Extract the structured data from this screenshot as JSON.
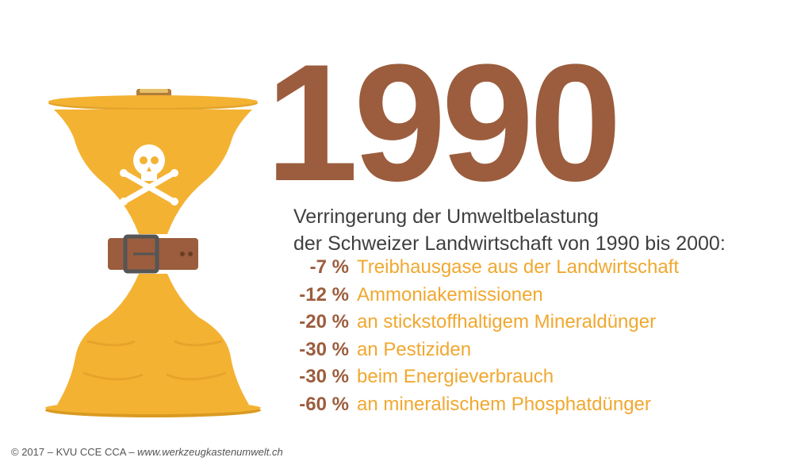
{
  "year": "1990",
  "intro": {
    "line1": "Verringerung der Umweltbelastung",
    "line2": "der Schweizer Landwirtschaft von 1990 bis 2000:"
  },
  "reductions": [
    {
      "percent": "-7 %",
      "label": "Treibhausgase aus der Landwirtschaft"
    },
    {
      "percent": "-12 %",
      "label": "Ammoniakemissionen"
    },
    {
      "percent": "-20 %",
      "label": "an stickstoffhaltigem Mineraldünger"
    },
    {
      "percent": "-30 %",
      "label": "an Pestiziden"
    },
    {
      "percent": "-30 %",
      "label": "beim Energieverbrauch"
    },
    {
      "percent": "-60 %",
      "label": "an mineralischem Phosphatdünger"
    }
  ],
  "footer": {
    "copyright": "© 2017 – KVU CCE CCA –",
    "url": "www.werkzeugkastenumwelt.ch"
  },
  "colors": {
    "brown": "#9b5d3d",
    "amber": "#f4b233",
    "amber_dark": "#d99a22",
    "text_gray": "#3f3f3f"
  },
  "icons": [
    "skull-crossbones-icon",
    "belt-icon"
  ]
}
